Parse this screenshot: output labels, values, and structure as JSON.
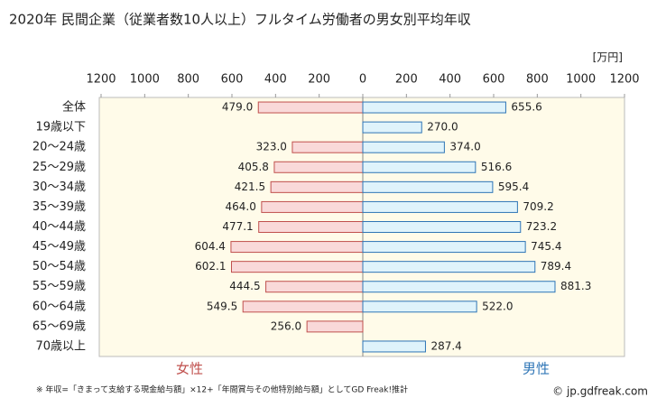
{
  "chart_data": {
    "type": "butterfly",
    "title": "2020年 民間企業（従業者数10人以上）フルタイム労働者の男女別平均年収",
    "unit": "[万円]",
    "categories": [
      "全体",
      "19歳以下",
      "20～24歳",
      "25～29歳",
      "30～34歳",
      "35～39歳",
      "40～44歳",
      "45～49歳",
      "50～54歳",
      "55～59歳",
      "60～64歳",
      "65～69歳",
      "70歳以上"
    ],
    "series": [
      {
        "name": "女性",
        "color": "#c0504d",
        "fill": "#f9d9d9",
        "side": "left",
        "values": [
          479.0,
          null,
          323.0,
          405.8,
          421.5,
          464.0,
          477.1,
          604.4,
          602.1,
          444.5,
          549.5,
          256.0,
          null
        ],
        "value_labels": [
          "479.0",
          null,
          "323.0",
          "405.8",
          "421.5",
          "464.0",
          "477.1",
          "604.4",
          "602.1",
          "444.5",
          "549.5",
          "256.0",
          null
        ]
      },
      {
        "name": "男性",
        "color": "#2e75b6",
        "fill": "#dff3fb",
        "side": "right",
        "values": [
          655.6,
          270.0,
          374.0,
          516.6,
          595.4,
          709.2,
          723.2,
          745.4,
          789.4,
          881.3,
          522.0,
          null,
          287.4
        ],
        "value_labels": [
          "655.6",
          "270.0",
          "374.0",
          "516.6",
          "595.4",
          "709.2",
          "723.2",
          "745.4",
          "789.4",
          "881.3",
          "522.0",
          null,
          "287.4"
        ]
      }
    ],
    "xlim": [
      0,
      1200
    ],
    "xticks": [
      0,
      200,
      400,
      600,
      800,
      1000,
      1200
    ],
    "grid": false,
    "footnote": "※ 年収=「きまって支給する現金給与額」×12+「年間賞与その他特別給与額」としてGD Freak!推計",
    "credit": "© jp.gdfreak.com"
  }
}
